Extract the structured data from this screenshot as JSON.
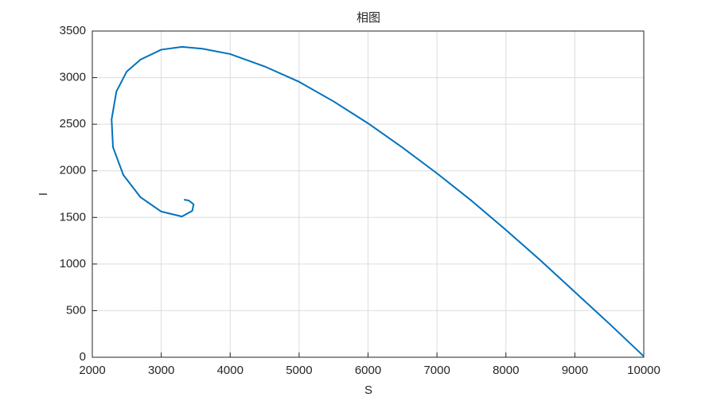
{
  "chart_data": {
    "type": "line",
    "title": "相图",
    "xlabel": "S",
    "ylabel": "I",
    "x": [
      10000,
      9500,
      9000,
      8500,
      8000,
      7500,
      7000,
      6500,
      6000,
      5500,
      5000,
      4500,
      4000,
      3600,
      3300,
      3000,
      2700,
      2500,
      2350,
      2280,
      2300,
      2450,
      2700,
      3000,
      3300,
      3450,
      3470,
      3400,
      3330
    ],
    "values": [
      10,
      360,
      700,
      1040,
      1366,
      1680,
      1973,
      2250,
      2510,
      2745,
      2955,
      3120,
      3253,
      3310,
      3330,
      3300,
      3194,
      3066,
      2852,
      2553,
      2254,
      1956,
      1716,
      1563,
      1510,
      1571,
      1640,
      1682,
      1690
    ],
    "color": "#0072bd",
    "xlim": [
      2000,
      10000
    ],
    "xticks": [
      2000,
      3000,
      4000,
      5000,
      6000,
      7000,
      8000,
      9000,
      10000
    ],
    "ylim": [
      0,
      3500
    ],
    "yticks": [
      0,
      500,
      1000,
      1500,
      2000,
      2500,
      3000,
      3500
    ],
    "grid": true
  }
}
